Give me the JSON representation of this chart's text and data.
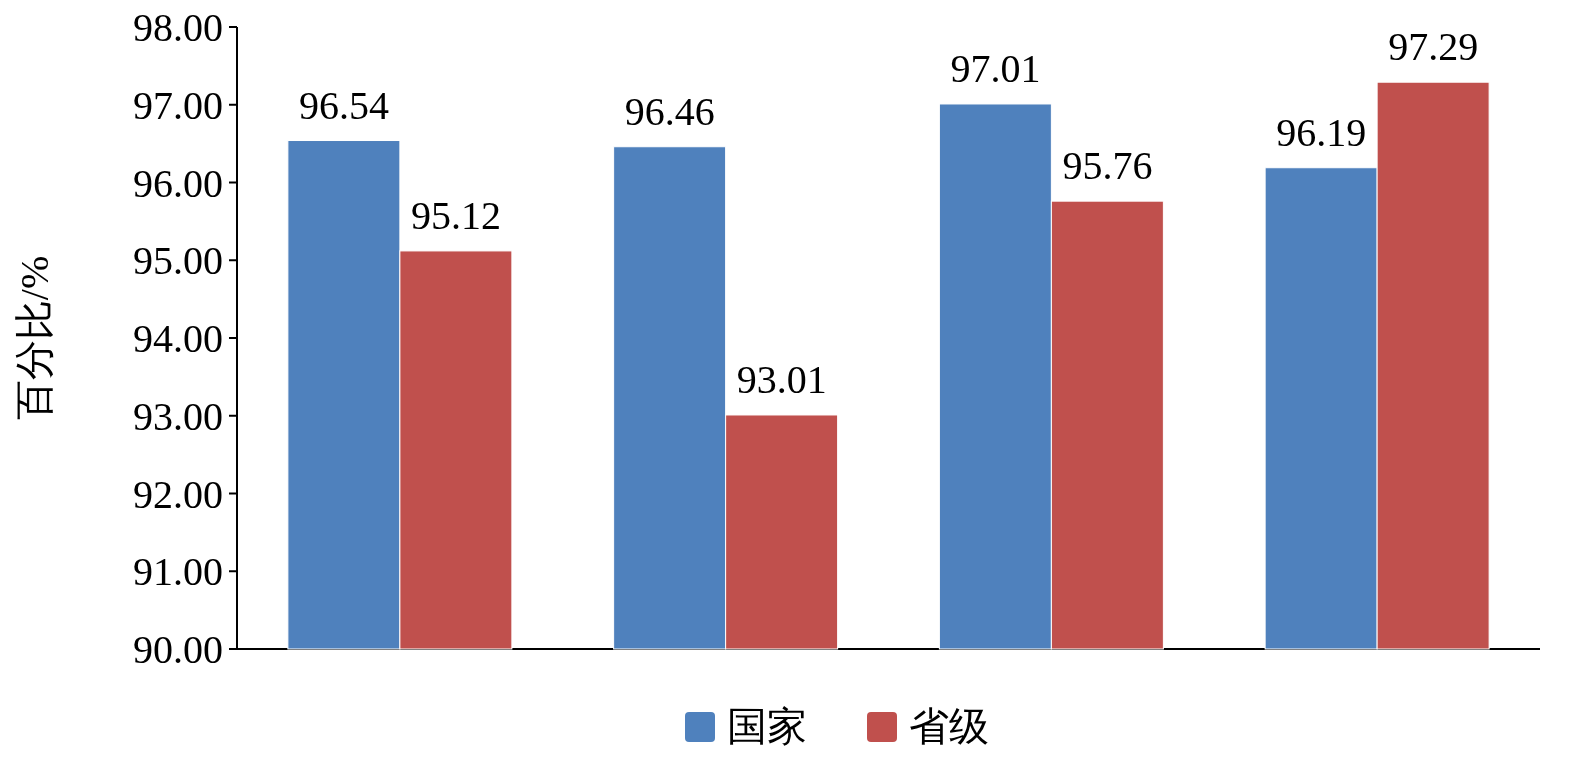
{
  "chart_data": {
    "type": "bar",
    "ylabel": "百分比/%",
    "categories": [
      null,
      null,
      null,
      null
    ],
    "series": [
      {
        "name": "国家",
        "color": "#4f81bd",
        "values": [
          96.54,
          96.46,
          97.01,
          96.19
        ]
      },
      {
        "name": "省级",
        "color": "#c0504d",
        "values": [
          95.12,
          93.01,
          95.76,
          97.29
        ]
      }
    ],
    "ylim": [
      90,
      98
    ],
    "yticks": [
      {
        "value": 90,
        "label": "90.00"
      },
      {
        "value": 91,
        "label": "91.00"
      },
      {
        "value": 92,
        "label": "92.00"
      },
      {
        "value": 93,
        "label": "93.00"
      },
      {
        "value": 94,
        "label": "94.00"
      },
      {
        "value": 95,
        "label": "95.00"
      },
      {
        "value": 96,
        "label": "96.00"
      },
      {
        "value": 97,
        "label": "97.00"
      },
      {
        "value": 98,
        "label": "98.00"
      }
    ],
    "data_labels": true,
    "legend": "bottom"
  }
}
